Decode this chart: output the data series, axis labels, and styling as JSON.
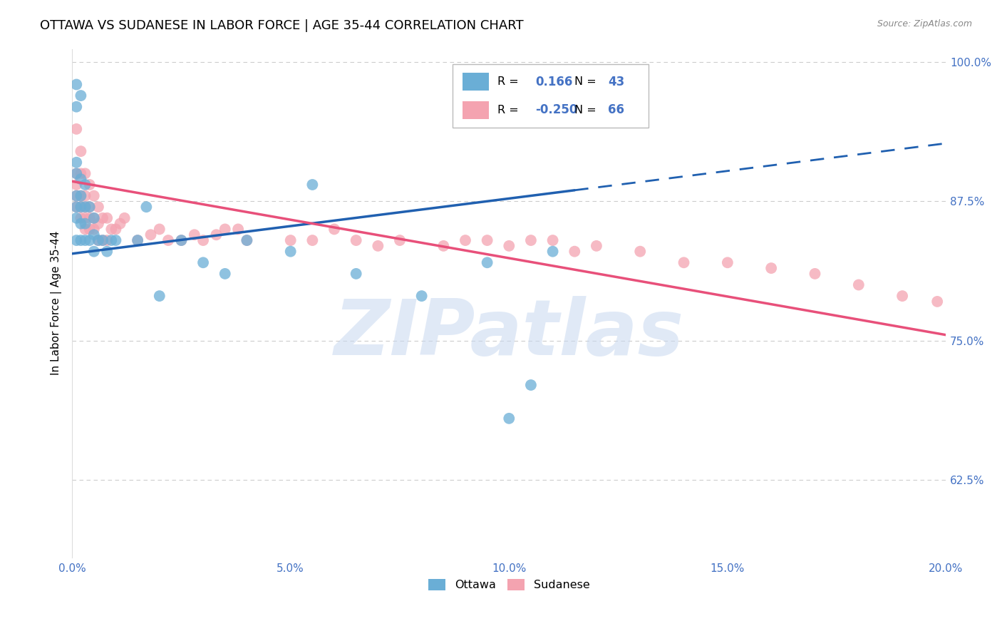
{
  "title": "OTTAWA VS SUDANESE IN LABOR FORCE | AGE 35-44 CORRELATION CHART",
  "source": "Source: ZipAtlas.com",
  "ylabel": "In Labor Force | Age 35-44",
  "xlim": [
    0.0,
    0.2
  ],
  "ylim": [
    0.555,
    1.012
  ],
  "yticks": [
    0.625,
    0.75,
    0.875,
    1.0
  ],
  "ytick_labels": [
    "62.5%",
    "75.0%",
    "87.5%",
    "100.0%"
  ],
  "xticks": [
    0.0,
    0.05,
    0.1,
    0.15,
    0.2
  ],
  "xtick_labels": [
    "0.0%",
    "5.0%",
    "10.0%",
    "15.0%",
    "20.0%"
  ],
  "legend_R_ottawa": "0.166",
  "legend_N_ottawa": "43",
  "legend_R_sudanese": "-0.250",
  "legend_N_sudanese": "66",
  "ottawa_color": "#6aaed6",
  "sudanese_color": "#f4a3b0",
  "trend_ottawa_color": "#2060b0",
  "trend_sudanese_color": "#e8507a",
  "watermark": "ZIPatlas",
  "watermark_color": "#c8d8f0",
  "background_color": "#ffffff",
  "grid_color": "#cccccc",
  "axis_color": "#4472c4",
  "title_fontsize": 13,
  "label_fontsize": 11,
  "tick_fontsize": 11,
  "ottawa_x": [
    0.001,
    0.001,
    0.001,
    0.001,
    0.001,
    0.001,
    0.001,
    0.001,
    0.002,
    0.002,
    0.002,
    0.002,
    0.002,
    0.002,
    0.003,
    0.003,
    0.003,
    0.003,
    0.004,
    0.004,
    0.005,
    0.005,
    0.005,
    0.006,
    0.007,
    0.008,
    0.009,
    0.01,
    0.015,
    0.017,
    0.02,
    0.025,
    0.03,
    0.035,
    0.04,
    0.05,
    0.055,
    0.065,
    0.08,
    0.095,
    0.1,
    0.105,
    0.11
  ],
  "ottawa_y": [
    0.84,
    0.86,
    0.87,
    0.88,
    0.9,
    0.91,
    0.96,
    0.98,
    0.84,
    0.855,
    0.87,
    0.88,
    0.895,
    0.97,
    0.84,
    0.855,
    0.87,
    0.89,
    0.84,
    0.87,
    0.83,
    0.845,
    0.86,
    0.84,
    0.84,
    0.83,
    0.84,
    0.84,
    0.84,
    0.87,
    0.79,
    0.84,
    0.82,
    0.81,
    0.84,
    0.83,
    0.89,
    0.81,
    0.79,
    0.82,
    0.68,
    0.71,
    0.83
  ],
  "sudanese_x": [
    0.001,
    0.001,
    0.001,
    0.001,
    0.001,
    0.002,
    0.002,
    0.002,
    0.002,
    0.002,
    0.003,
    0.003,
    0.003,
    0.003,
    0.003,
    0.004,
    0.004,
    0.004,
    0.004,
    0.005,
    0.005,
    0.005,
    0.006,
    0.006,
    0.006,
    0.007,
    0.007,
    0.008,
    0.008,
    0.009,
    0.01,
    0.011,
    0.012,
    0.015,
    0.018,
    0.02,
    0.022,
    0.025,
    0.028,
    0.03,
    0.033,
    0.035,
    0.038,
    0.04,
    0.05,
    0.055,
    0.06,
    0.065,
    0.07,
    0.075,
    0.085,
    0.09,
    0.095,
    0.1,
    0.105,
    0.11,
    0.115,
    0.12,
    0.13,
    0.14,
    0.15,
    0.16,
    0.17,
    0.18,
    0.19,
    0.198
  ],
  "sudanese_y": [
    0.87,
    0.88,
    0.89,
    0.9,
    0.94,
    0.86,
    0.87,
    0.88,
    0.9,
    0.92,
    0.85,
    0.86,
    0.87,
    0.88,
    0.9,
    0.85,
    0.86,
    0.87,
    0.89,
    0.85,
    0.86,
    0.88,
    0.84,
    0.855,
    0.87,
    0.84,
    0.86,
    0.84,
    0.86,
    0.85,
    0.85,
    0.855,
    0.86,
    0.84,
    0.845,
    0.85,
    0.84,
    0.84,
    0.845,
    0.84,
    0.845,
    0.85,
    0.85,
    0.84,
    0.84,
    0.84,
    0.85,
    0.84,
    0.835,
    0.84,
    0.835,
    0.84,
    0.84,
    0.835,
    0.84,
    0.84,
    0.83,
    0.835,
    0.83,
    0.82,
    0.82,
    0.815,
    0.81,
    0.8,
    0.79,
    0.785
  ],
  "trend_ottawa_x0": 0.0,
  "trend_ottawa_y0": 0.828,
  "trend_ottawa_x1": 0.115,
  "trend_ottawa_y1": 0.885,
  "trend_ottawa_dash_x0": 0.115,
  "trend_ottawa_dash_x1": 0.2,
  "trend_sudanese_x0": 0.0,
  "trend_sudanese_y0": 0.893,
  "trend_sudanese_x1": 0.2,
  "trend_sudanese_y1": 0.755
}
